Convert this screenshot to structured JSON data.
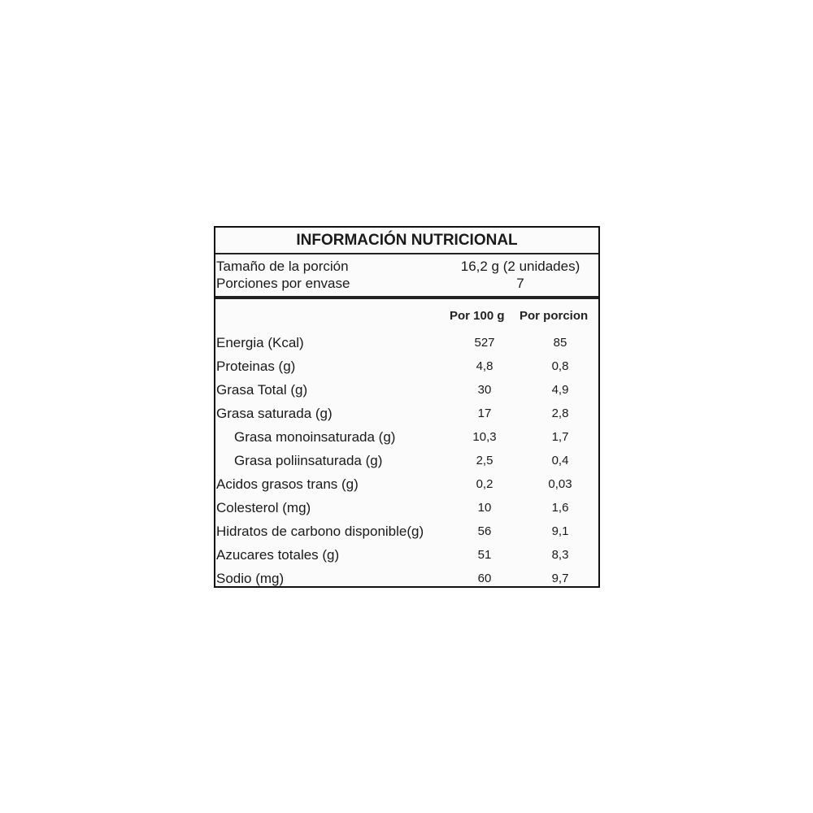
{
  "title": "INFORMACIÓN NUTRICIONAL",
  "serving": {
    "size_label": "Tamaño de la porción",
    "size_value": "16,2 g (2 unidades)",
    "per_package_label": "Porciones por envase",
    "per_package_value": "7"
  },
  "columns": {
    "per100": "Por 100 g",
    "per_serving": "Por porcion"
  },
  "rows": [
    {
      "name": "Energia (Kcal)",
      "per100": "527",
      "per_serving": "85"
    },
    {
      "name": "Proteinas (g)",
      "per100": "4,8",
      "per_serving": "0,8"
    },
    {
      "name": "Grasa Total (g)",
      "per100": "30",
      "per_serving": "4,9"
    },
    {
      "name": "Grasa saturada (g)",
      "per100": "17",
      "per_serving": "2,8"
    },
    {
      "name": "Grasa monoinsaturada (g)",
      "per100": "10,3",
      "per_serving": "1,7"
    },
    {
      "name": "Grasa poliinsaturada (g)",
      "per100": "2,5",
      "per_serving": "0,4"
    },
    {
      "name": "Acidos grasos trans (g)",
      "per100": "0,2",
      "per_serving": "0,03"
    },
    {
      "name": "Colesterol (mg)",
      "per100": "10",
      "per_serving": "1,6"
    },
    {
      "name": "Hidratos de carbono disponible(g)",
      "per100": "56",
      "per_serving": "9,1"
    },
    {
      "name": "Azucares totales (g)",
      "per100": "51",
      "per_serving": "8,3"
    },
    {
      "name": "Sodio (mg)",
      "per100": "60",
      "per_serving": "9,7"
    }
  ]
}
